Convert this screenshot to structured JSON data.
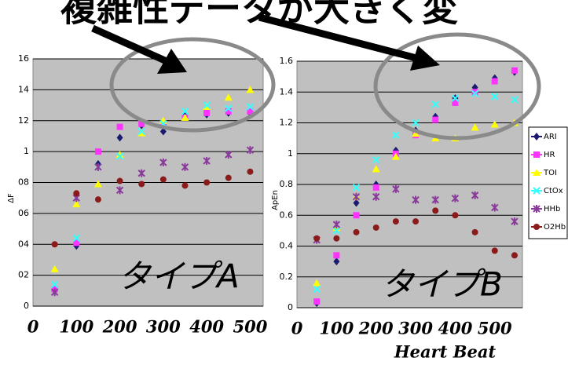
{
  "heading": "複雑性データが大きく変",
  "chart_data": [
    {
      "type": "scatter",
      "ylabel": "ΔF",
      "annotation": "タイプA",
      "xlim": [
        0,
        530
      ],
      "xticks": [
        0,
        100,
        200,
        300,
        400,
        500
      ],
      "ylim": [
        0,
        1.6
      ],
      "yticks": [
        0,
        {
          "value": 0.2,
          "label": "02"
        },
        {
          "value": 0.4,
          "label": "04"
        },
        {
          "value": 0.6,
          "label": "06"
        },
        {
          "value": 0.8,
          "label": "08"
        },
        1,
        {
          "value": 1.2,
          "label": "12"
        },
        {
          "value": 1.4,
          "label": "14"
        },
        {
          "value": 1.6,
          "label": "16"
        }
      ],
      "grid": true,
      "x": [
        50,
        100,
        150,
        200,
        250,
        300,
        350,
        400,
        450,
        500
      ],
      "series": [
        {
          "color": "#1a1a70",
          "marker": "diamond",
          "values": [
            0.1,
            0.39,
            0.92,
            1.09,
            1.17,
            1.13,
            1.23,
            1.24,
            1.25,
            1.25
          ]
        },
        {
          "color": "#ff33ff",
          "marker": "square",
          "values": [
            0.11,
            0.41,
            1.0,
            1.16,
            1.18,
            1.18,
            1.22,
            1.25,
            1.26,
            1.26
          ]
        },
        {
          "color": "#ffff00",
          "marker": "triangle",
          "values": [
            0.24,
            0.66,
            0.79,
            0.98,
            1.12,
            1.2,
            1.22,
            1.29,
            1.35,
            1.4
          ]
        },
        {
          "color": "#33ffff",
          "marker": "cross",
          "values": [
            0.14,
            0.44,
            0.9,
            0.97,
            1.13,
            1.18,
            1.26,
            1.3,
            1.28,
            1.29
          ]
        },
        {
          "color": "#8a3a9a",
          "marker": "star",
          "values": [
            0.09,
            0.7,
            0.9,
            0.75,
            0.86,
            0.93,
            0.9,
            0.94,
            0.98,
            1.01
          ]
        },
        {
          "color": "#8b1a1a",
          "marker": "circle",
          "values": [
            0.4,
            0.73,
            0.69,
            0.81,
            0.79,
            0.82,
            0.78,
            0.8,
            0.83,
            0.87
          ]
        }
      ]
    },
    {
      "type": "scatter",
      "ylabel": "ApEn",
      "xlabel": "Heart Beat",
      "annotation": "タイプB",
      "xlim": [
        0,
        570
      ],
      "xticks": [
        0,
        100,
        200,
        300,
        400,
        500
      ],
      "ylim": [
        0,
        1.6
      ],
      "yticks": [
        0,
        0.2,
        0.4,
        0.6,
        0.8,
        1,
        1.2,
        1.4,
        1.6
      ],
      "grid": true,
      "legend": "right",
      "x": [
        50,
        100,
        150,
        200,
        250,
        300,
        350,
        400,
        450,
        500,
        550
      ],
      "series": [
        {
          "name": "ARI",
          "color": "#1a1a70",
          "marker": "diamond",
          "values": [
            0.03,
            0.3,
            0.68,
            0.8,
            1.02,
            1.15,
            1.24,
            1.36,
            1.43,
            1.49,
            1.53
          ]
        },
        {
          "name": "HR",
          "color": "#ff33ff",
          "marker": "square",
          "values": [
            0.04,
            0.34,
            0.6,
            0.78,
            1.0,
            1.12,
            1.22,
            1.33,
            1.4,
            1.47,
            1.54
          ]
        },
        {
          "name": "TOI",
          "color": "#ffff00",
          "marker": "triangle",
          "values": [
            0.16,
            0.52,
            0.72,
            0.9,
            0.98,
            1.13,
            1.1,
            1.1,
            1.17,
            1.19,
            1.2
          ]
        },
        {
          "name": "CtOx",
          "color": "#33ffff",
          "marker": "cross",
          "values": [
            0.12,
            0.5,
            0.78,
            0.96,
            1.12,
            1.2,
            1.32,
            1.36,
            1.39,
            1.37,
            1.35
          ]
        },
        {
          "name": "HHb",
          "color": "#8a3a9a",
          "marker": "star",
          "values": [
            0.44,
            0.54,
            0.72,
            0.72,
            0.77,
            0.7,
            0.7,
            0.71,
            0.73,
            0.65,
            0.56
          ]
        },
        {
          "name": "O2Hb",
          "color": "#8b1a1a",
          "marker": "circle",
          "values": [
            0.45,
            0.45,
            0.49,
            0.52,
            0.56,
            0.56,
            0.63,
            0.6,
            0.49,
            0.37,
            0.34
          ]
        }
      ]
    }
  ]
}
